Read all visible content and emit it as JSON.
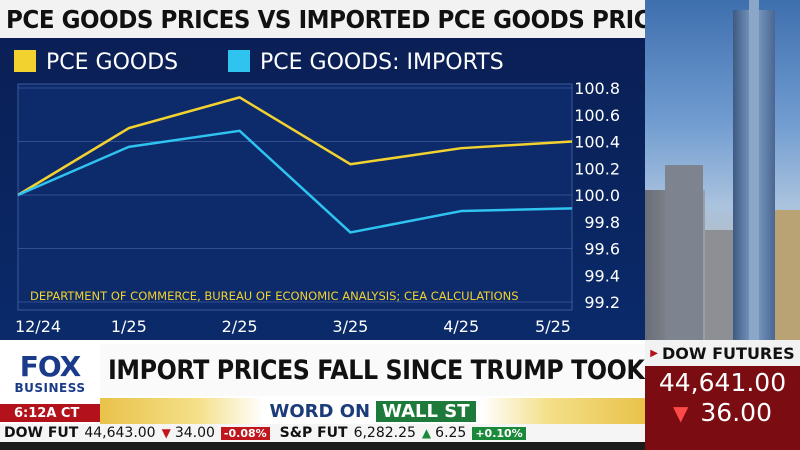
{
  "title": "PCE GOODS PRICES VS IMPORTED PCE GOODS PRICES",
  "chart_data": {
    "type": "line",
    "categories": [
      "12/24",
      "1/25",
      "2/25",
      "3/25",
      "4/25",
      "5/25"
    ],
    "series": [
      {
        "name": "PCE GOODS",
        "color": "#f2d22e",
        "values": [
          100.0,
          100.5,
          100.73,
          100.23,
          100.35,
          100.4
        ]
      },
      {
        "name": "PCE GOODS: IMPORTS",
        "color": "#2fc3f0",
        "values": [
          100.0,
          100.36,
          100.48,
          99.72,
          99.88,
          99.9
        ]
      }
    ],
    "yticks": [
      "100.8",
      "100.6",
      "100.4",
      "100.2",
      "100.0",
      "99.8",
      "99.6",
      "99.4",
      "99.2"
    ],
    "ylim": [
      99.2,
      100.8
    ],
    "source": "DEPARTMENT OF COMMERCE, BUREAU OF ECONOMIC ANALYSIS; CEA CALCULATIONS",
    "grid": true,
    "legend_position": "top-left"
  },
  "logo": {
    "fox": "FOX",
    "business": "BUSINESS"
  },
  "time": "6:12A CT",
  "headline": "IMPORT PRICES FALL SINCE TRUMP TOOK OFFICE",
  "segment": {
    "word_on": "WORD ON",
    "wall": "WALL ST"
  },
  "dow_futures": {
    "label": "DOW FUTURES",
    "value": "44,641.00",
    "change": "36.00"
  },
  "ticker": [
    {
      "sym": "DOW FUT",
      "num": "44,643.00",
      "dir": "down",
      "chg": "34.00",
      "pct": "-0.08%"
    },
    {
      "sym": "S&P FUT",
      "num": "6,282.25",
      "dir": "up",
      "chg": "6.25",
      "pct": "+0.10%"
    }
  ]
}
